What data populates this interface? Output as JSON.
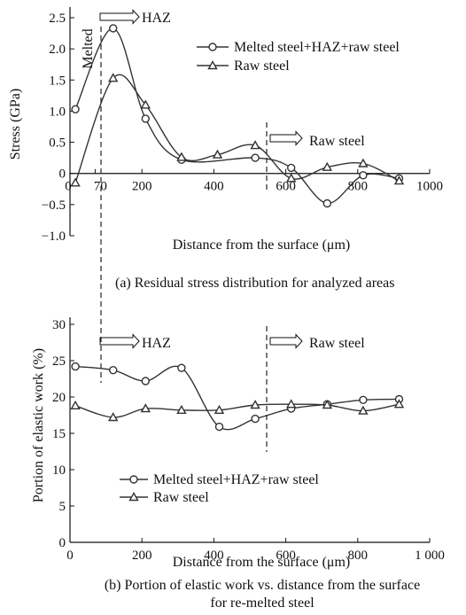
{
  "chart_data": [
    {
      "type": "line",
      "caption": "(a) Residual stress distribution for analyzed areas",
      "xlabel": "Distance from the surface (μm)",
      "ylabel": "Stress (GPa)",
      "xlim": [
        0,
        1000
      ],
      "ylim": [
        -1.0,
        2.5
      ],
      "x_ticks": [
        {
          "value": 0,
          "label": "0"
        },
        {
          "value": 70,
          "label": "70"
        },
        {
          "value": 200,
          "label": "200"
        },
        {
          "value": 400,
          "label": "400"
        },
        {
          "value": 600,
          "label": "600"
        },
        {
          "value": 800,
          "label": "800"
        },
        {
          "value": 1000,
          "label": "1000"
        }
      ],
      "y_ticks": [
        {
          "value": 2.5,
          "label": "2.5"
        },
        {
          "value": 2.0,
          "label": "2.0"
        },
        {
          "value": 1.5,
          "label": "1.5"
        },
        {
          "value": 1.0,
          "label": "1.0"
        },
        {
          "value": 0.5,
          "label": "0.5"
        },
        {
          "value": 0,
          "label": "0"
        },
        {
          "value": -0.5,
          "label": "−0.5"
        },
        {
          "value": -1.0,
          "label": "−1.0"
        }
      ],
      "grid": false,
      "legend_position": "top-right",
      "series": [
        {
          "name": "Melted steel+HAZ+raw steel",
          "marker": "circle",
          "x": [
            15,
            120,
            210,
            310,
            515,
            615,
            715,
            815,
            915
          ],
          "y": [
            1.03,
            2.33,
            0.88,
            0.22,
            0.25,
            0.09,
            -0.48,
            -0.03,
            -0.08
          ]
        },
        {
          "name": "Raw steel",
          "marker": "triangle",
          "x": [
            15,
            120,
            210,
            310,
            410,
            515,
            615,
            715,
            815,
            915
          ],
          "y": [
            -0.15,
            1.53,
            1.1,
            0.26,
            0.3,
            0.45,
            -0.08,
            0.1,
            0.16,
            -0.12
          ]
        }
      ],
      "annotations": [
        {
          "text": "Melted",
          "at_x": 70
        },
        {
          "text": "HAZ",
          "at_x": 70
        },
        {
          "text": "Raw steel",
          "at_x": 520
        }
      ]
    },
    {
      "type": "line",
      "caption": "(b) Portion of elastic work vs. distance from the surface for re-melted steel",
      "caption_lines": [
        "(b) Portion of elastic work vs. distance from the surface",
        "for re-melted steel"
      ],
      "xlabel": "Distance from the surface (μm)",
      "ylabel": "Portion of elastic work (%)",
      "xlim": [
        0,
        1000
      ],
      "ylim": [
        0,
        30
      ],
      "x_ticks": [
        {
          "value": 0,
          "label": "0"
        },
        {
          "value": 200,
          "label": "200"
        },
        {
          "value": 400,
          "label": "400"
        },
        {
          "value": 600,
          "label": "600"
        },
        {
          "value": 800,
          "label": "800"
        },
        {
          "value": 1000,
          "label": "1 000"
        }
      ],
      "y_ticks": [
        {
          "value": 30,
          "label": "30"
        },
        {
          "value": 25,
          "label": "25"
        },
        {
          "value": 20,
          "label": "20"
        },
        {
          "value": 15,
          "label": "15"
        },
        {
          "value": 10,
          "label": "10"
        },
        {
          "value": 5,
          "label": "5"
        },
        {
          "value": 0,
          "label": "0"
        }
      ],
      "grid": false,
      "legend_position": "bottom-left",
      "series": [
        {
          "name": "Melted steel+HAZ+raw steel",
          "marker": "circle",
          "x": [
            15,
            120,
            210,
            310,
            415,
            515,
            615,
            715,
            815,
            915
          ],
          "y": [
            24.2,
            23.7,
            22.2,
            24.0,
            15.9,
            17.0,
            18.4,
            19.0,
            19.6,
            19.7
          ]
        },
        {
          "name": "Raw steel",
          "marker": "triangle",
          "x": [
            15,
            120,
            210,
            310,
            415,
            515,
            615,
            715,
            815,
            915
          ],
          "y": [
            18.8,
            17.2,
            18.4,
            18.2,
            18.2,
            18.9,
            19.0,
            18.9,
            18.1,
            19.0
          ]
        }
      ],
      "annotations": [
        {
          "text": "HAZ",
          "at_x": 70
        },
        {
          "text": "Raw steel",
          "at_x": 520
        }
      ]
    }
  ]
}
